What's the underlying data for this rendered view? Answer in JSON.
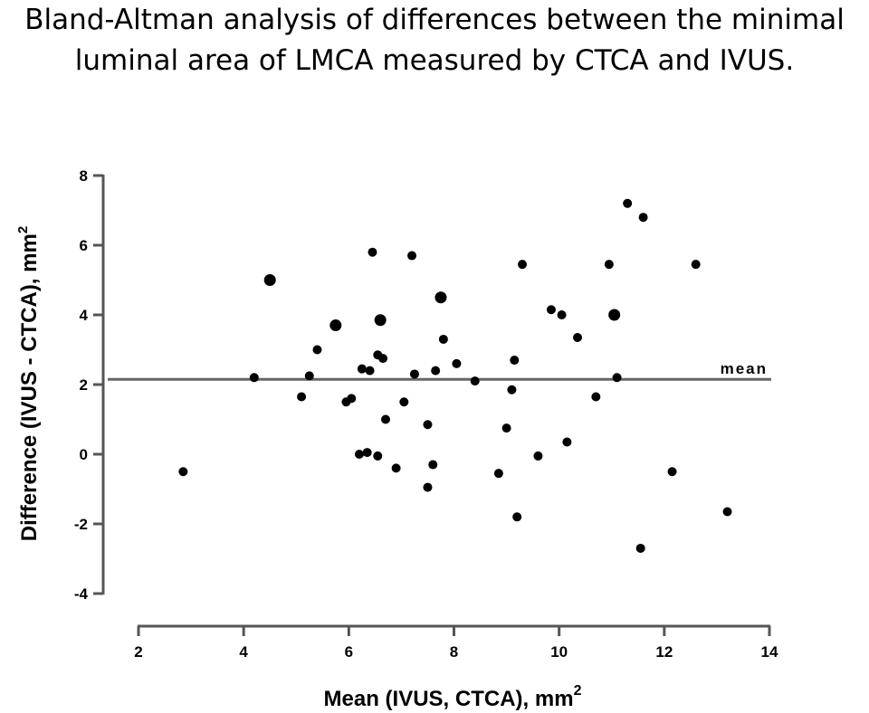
{
  "figure": {
    "title_line1": "Bland-Altman analysis of differences between the minimal",
    "title_line2": "luminal area of LMCA measured by CTCA and IVUS."
  },
  "chart_data": {
    "type": "scatter",
    "title": "Bland-Altman analysis of differences between the minimal luminal area of LMCA measured by CTCA and IVUS.",
    "xlabel": "Mean (IVUS, CTCA), mm",
    "xlabel_sup": "2",
    "ylabel": "Difference (IVUS - CTCA), mm",
    "ylabel_sup": "2",
    "xlim": [
      2,
      14
    ],
    "ylim": [
      -4,
      8
    ],
    "x_ticks": [
      "2",
      "4",
      "6",
      "8",
      "10",
      "12",
      "14"
    ],
    "y_ticks": [
      "8",
      "6",
      "4",
      "2",
      "0",
      "-2",
      "-4"
    ],
    "grid": false,
    "mean_line": {
      "label": "mean",
      "value": 2.15
    },
    "x": [
      2.85,
      4.2,
      4.5,
      5.1,
      5.25,
      5.4,
      5.75,
      5.95,
      6.05,
      6.2,
      6.25,
      6.35,
      6.4,
      6.45,
      6.55,
      6.55,
      6.6,
      6.65,
      6.7,
      6.9,
      7.05,
      7.2,
      7.25,
      7.5,
      7.5,
      7.6,
      7.65,
      7.75,
      7.8,
      8.05,
      8.4,
      8.85,
      9.0,
      9.1,
      9.15,
      9.2,
      9.3,
      9.6,
      9.85,
      10.05,
      10.15,
      10.35,
      10.7,
      10.95,
      11.05,
      11.1,
      11.3,
      11.55,
      11.6,
      12.15,
      12.6,
      13.2
    ],
    "y": [
      -0.5,
      2.2,
      5.0,
      1.65,
      2.25,
      3.0,
      3.7,
      1.5,
      1.6,
      0.0,
      2.45,
      0.05,
      2.4,
      5.8,
      2.85,
      -0.05,
      3.85,
      2.75,
      1.0,
      -0.4,
      1.5,
      5.7,
      2.3,
      0.85,
      -0.95,
      -0.3,
      2.4,
      4.5,
      3.3,
      2.6,
      2.1,
      -0.55,
      0.75,
      1.85,
      2.7,
      -1.8,
      5.45,
      -0.05,
      4.15,
      4.0,
      0.35,
      3.35,
      1.65,
      5.45,
      4.0,
      2.2,
      7.2,
      -2.7,
      6.8,
      -0.5,
      5.45,
      -1.65
    ]
  }
}
